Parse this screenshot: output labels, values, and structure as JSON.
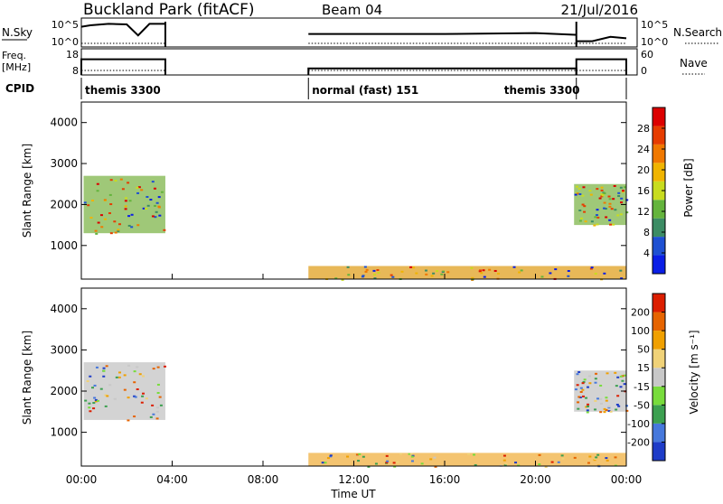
{
  "header": {
    "station": "Buckland Park (fitACF)",
    "beam": "Beam 04",
    "date": "21/Jul/2016"
  },
  "colors": {
    "low_power": "#1e3fd0",
    "mid_power": "#2aa84a",
    "high_power": "#e34a12",
    "ground_scatter": "#c0c0c0"
  },
  "chart_data": [
    {
      "type": "line",
      "panel": "noise",
      "left_label": "N.Sky",
      "left_ticks": [
        "10^5",
        "10^0"
      ],
      "right_label": "N.Search",
      "right_ticks": [
        "10^5",
        "10^0"
      ],
      "segments": [
        {
          "x": [
            0.0,
            0.4,
            1.2,
            2.0,
            2.5,
            3.0,
            3.7
          ],
          "y": [
            0.7,
            0.75,
            0.8,
            0.78,
            0.4,
            0.8,
            0.8
          ]
        },
        {
          "x": [
            10.0,
            12.0,
            16.0,
            20.0,
            21.8
          ],
          "y": [
            0.45,
            0.45,
            0.45,
            0.48,
            0.42
          ]
        },
        {
          "x": [
            21.8,
            22.5,
            23.3,
            24.0
          ],
          "y": [
            0.2,
            0.2,
            0.35,
            0.3
          ]
        }
      ]
    },
    {
      "type": "line",
      "panel": "frequency",
      "left_label": "Freq.",
      "left_unit": "[MHz]",
      "left_ticks": [
        "18",
        "8"
      ],
      "right_label": "Nave",
      "right_ticks": [
        "60",
        "0"
      ],
      "segments": [
        {
          "x": [
            0.0,
            3.7
          ],
          "y": [
            0.6,
            0.6
          ]
        },
        {
          "x": [
            10.0,
            21.8
          ],
          "y": [
            0.25,
            0.25
          ]
        },
        {
          "x": [
            21.8,
            24.0
          ],
          "y": [
            0.6,
            0.6
          ]
        }
      ]
    },
    {
      "type": "table",
      "panel": "cpid",
      "label": "CPID",
      "modes": [
        {
          "start": 0.0,
          "end": 3.7,
          "text": "themis 3300"
        },
        {
          "start": 10.0,
          "end": 21.8,
          "text": "normal (fast) 151"
        },
        {
          "start": 21.8,
          "end": 24.0,
          "text": "themis 3300"
        }
      ]
    },
    {
      "type": "heatmap",
      "panel": "power",
      "ylabel": "Slant Range [km]",
      "yticks": [
        1000,
        2000,
        3000,
        4000
      ],
      "ylim": [
        180,
        4500
      ],
      "colorbar_label": "Power [dB]",
      "colorbar_ticks": [
        "28",
        "24",
        "20",
        "16",
        "12",
        "8",
        "4"
      ],
      "colorbar_colors": [
        "#0a1ee6",
        "#1e50d2",
        "#3c8c64",
        "#64b43c",
        "#c8dc1e",
        "#f0b400",
        "#f07800",
        "#e63c00",
        "#dc0000"
      ],
      "regions": [
        {
          "t0": 0.1,
          "t1": 3.7,
          "r0": 1300,
          "r1": 2700,
          "color": "#7fb54b"
        },
        {
          "t0": 21.7,
          "t1": 24.0,
          "r0": 1500,
          "r1": 2500,
          "color": "#7fb54b"
        },
        {
          "t0": 10.0,
          "t1": 24.0,
          "r0": 180,
          "r1": 500,
          "color": "#e0a020"
        }
      ]
    },
    {
      "type": "heatmap",
      "panel": "velocity",
      "ylabel": "Slant Range [km]",
      "yticks": [
        1000,
        2000,
        3000,
        4000
      ],
      "ylim": [
        180,
        4500
      ],
      "xticks": [
        "00:00",
        "04:00",
        "08:00",
        "12:00",
        "16:00",
        "20:00",
        "00:00"
      ],
      "xlabel": "Time UT",
      "colorbar_label": "Velocity [m s⁻¹]",
      "colorbar_ticks": [
        "200",
        "100",
        "50",
        "15",
        "-15",
        "-50",
        "-100",
        "-200"
      ],
      "colorbar_colors": [
        "#1e3cc8",
        "#4678dc",
        "#3ca050",
        "#78dc3c",
        "#c8c8c8",
        "#f0d278",
        "#f0a000",
        "#e66400",
        "#dc1e00"
      ],
      "regions": [
        {
          "t0": 0.1,
          "t1": 3.7,
          "r0": 1300,
          "r1": 2700,
          "color": "#c4c4c4"
        },
        {
          "t0": 21.7,
          "t1": 24.0,
          "r0": 1500,
          "r1": 2500,
          "color": "#c4c4c4"
        },
        {
          "t0": 10.0,
          "t1": 24.0,
          "r0": 180,
          "r1": 500,
          "color": "#f0b040"
        }
      ]
    }
  ]
}
